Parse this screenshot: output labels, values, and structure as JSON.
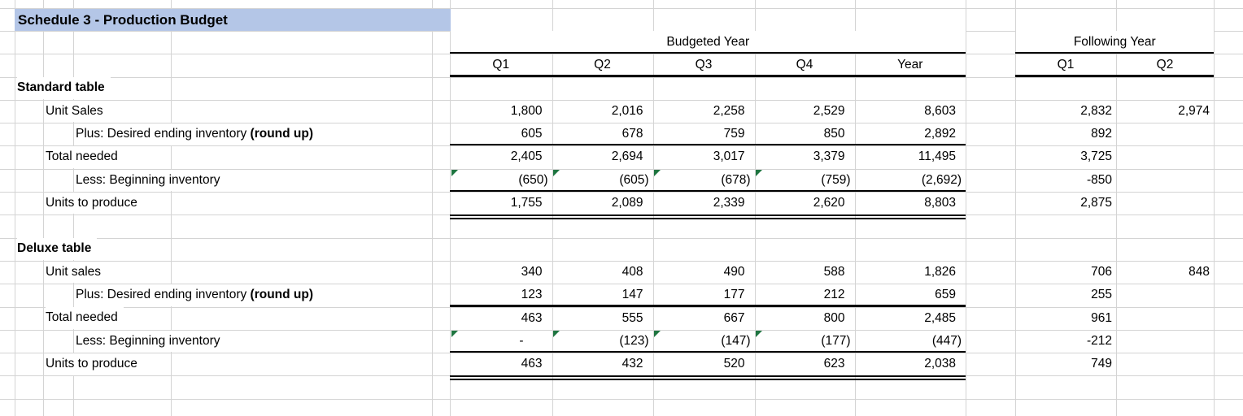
{
  "title": "Schedule 3 - Production Budget",
  "header": {
    "budgeted_year": "Budgeted Year",
    "following_year": "Following Year",
    "budget_cols": [
      "Q1",
      "Q2",
      "Q3",
      "Q4",
      "Year"
    ],
    "following_cols": [
      "Q1",
      "Q2"
    ]
  },
  "sections": [
    {
      "name": "Standard table",
      "rows": [
        {
          "label": "Unit Sales",
          "indent": 1,
          "values": [
            "1,800",
            "2,016",
            "2,258",
            "2,529",
            "8,603"
          ],
          "fy": [
            "2,832",
            "2,974"
          ]
        },
        {
          "label": "Plus: Desired ending inventory ",
          "label_bold": "(round up)",
          "indent": 2,
          "values": [
            "605",
            "678",
            "759",
            "850",
            "2,892"
          ],
          "fy": [
            "892",
            ""
          ],
          "border": "single"
        },
        {
          "label": "Total needed",
          "indent": 1,
          "values": [
            "2,405",
            "2,694",
            "3,017",
            "3,379",
            "11,495"
          ],
          "fy": [
            "3,725",
            ""
          ]
        },
        {
          "label": "Less: Beginning inventory",
          "indent": 2,
          "values": [
            "(650)",
            "(605)",
            "(678)",
            "(759)",
            "(2,692)"
          ],
          "fy": [
            "-850",
            ""
          ],
          "error_flags": [
            0,
            1,
            2,
            3
          ],
          "border": "single"
        },
        {
          "label": "Units to produce",
          "indent": 1,
          "values": [
            "1,755",
            "2,089",
            "2,339",
            "2,620",
            "8,803"
          ],
          "fy": [
            "2,875",
            ""
          ],
          "border": "double"
        }
      ]
    },
    {
      "name": "Deluxe table",
      "rows": [
        {
          "label": "Unit sales",
          "indent": 1,
          "values": [
            "340",
            "408",
            "490",
            "588",
            "1,826"
          ],
          "fy": [
            "706",
            "848"
          ]
        },
        {
          "label": "Plus: Desired ending inventory ",
          "label_bold": "(round up)",
          "indent": 2,
          "values": [
            "123",
            "147",
            "177",
            "212",
            "659"
          ],
          "fy": [
            "255",
            ""
          ],
          "border": "single"
        },
        {
          "label": "Total needed",
          "indent": 1,
          "values": [
            "463",
            "555",
            "667",
            "800",
            "2,485"
          ],
          "fy": [
            "961",
            ""
          ]
        },
        {
          "label": "Less: Beginning inventory",
          "indent": 2,
          "values": [
            "-",
            "(123)",
            "(147)",
            "(177)",
            "(447)"
          ],
          "fy": [
            "-212",
            ""
          ],
          "error_flags": [
            0,
            1,
            2,
            3
          ],
          "border": "single"
        },
        {
          "label": "Units to produce",
          "indent": 1,
          "values": [
            "463",
            "432",
            "520",
            "623",
            "2,038"
          ],
          "fy": [
            "749",
            ""
          ],
          "border": "double"
        }
      ]
    }
  ],
  "colors": {
    "title_fill": "#B4C6E7",
    "gridline": "#D4D4D4",
    "heavy_border": "#000000",
    "error_indicator": "#1E7540",
    "text": "#000000"
  }
}
